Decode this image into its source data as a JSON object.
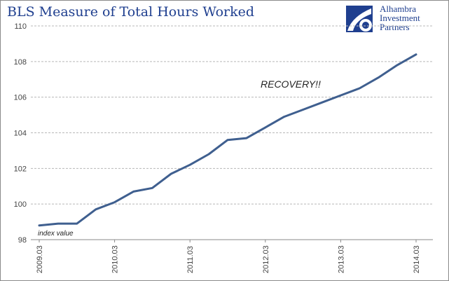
{
  "header": {
    "title": "BLS Measure of Total Hours Worked"
  },
  "logo": {
    "line1": "Alhambra",
    "line2": "Investment",
    "line3": "Partners",
    "color": "#1f3f8f"
  },
  "chart_data": {
    "type": "line",
    "title": "BLS Measure of Total Hours Worked",
    "xlabel": "",
    "ylabel": "",
    "ylim": [
      98,
      110
    ],
    "y_ticks": [
      "98",
      "100",
      "102",
      "104",
      "106",
      "108",
      "110"
    ],
    "x_tick_labels": [
      "2009.03",
      "2010.03",
      "2011.03",
      "2012.03",
      "2013.03",
      "2014.03"
    ],
    "grid": true,
    "line_color": "#3f5f8f",
    "series": [
      {
        "x": [
          "2009.03",
          "2009.06",
          "2009.09",
          "2009.12",
          "2010.03",
          "2010.06",
          "2010.09",
          "2010.12",
          "2011.03",
          "2011.06",
          "2011.09",
          "2011.12",
          "2012.03",
          "2012.06",
          "2012.09",
          "2012.12",
          "2013.03",
          "2013.06",
          "2013.09",
          "2013.12",
          "2014.03"
        ],
        "values": [
          98.8,
          98.9,
          98.9,
          99.7,
          100.1,
          100.7,
          100.9,
          101.7,
          102.2,
          102.8,
          103.6,
          103.7,
          104.3,
          104.9,
          105.3,
          105.7,
          106.1,
          106.5,
          107.1,
          107.8,
          108.4
        ]
      }
    ],
    "annotations": {
      "recovery": "RECOVERY!!",
      "index_value": "index value"
    }
  }
}
